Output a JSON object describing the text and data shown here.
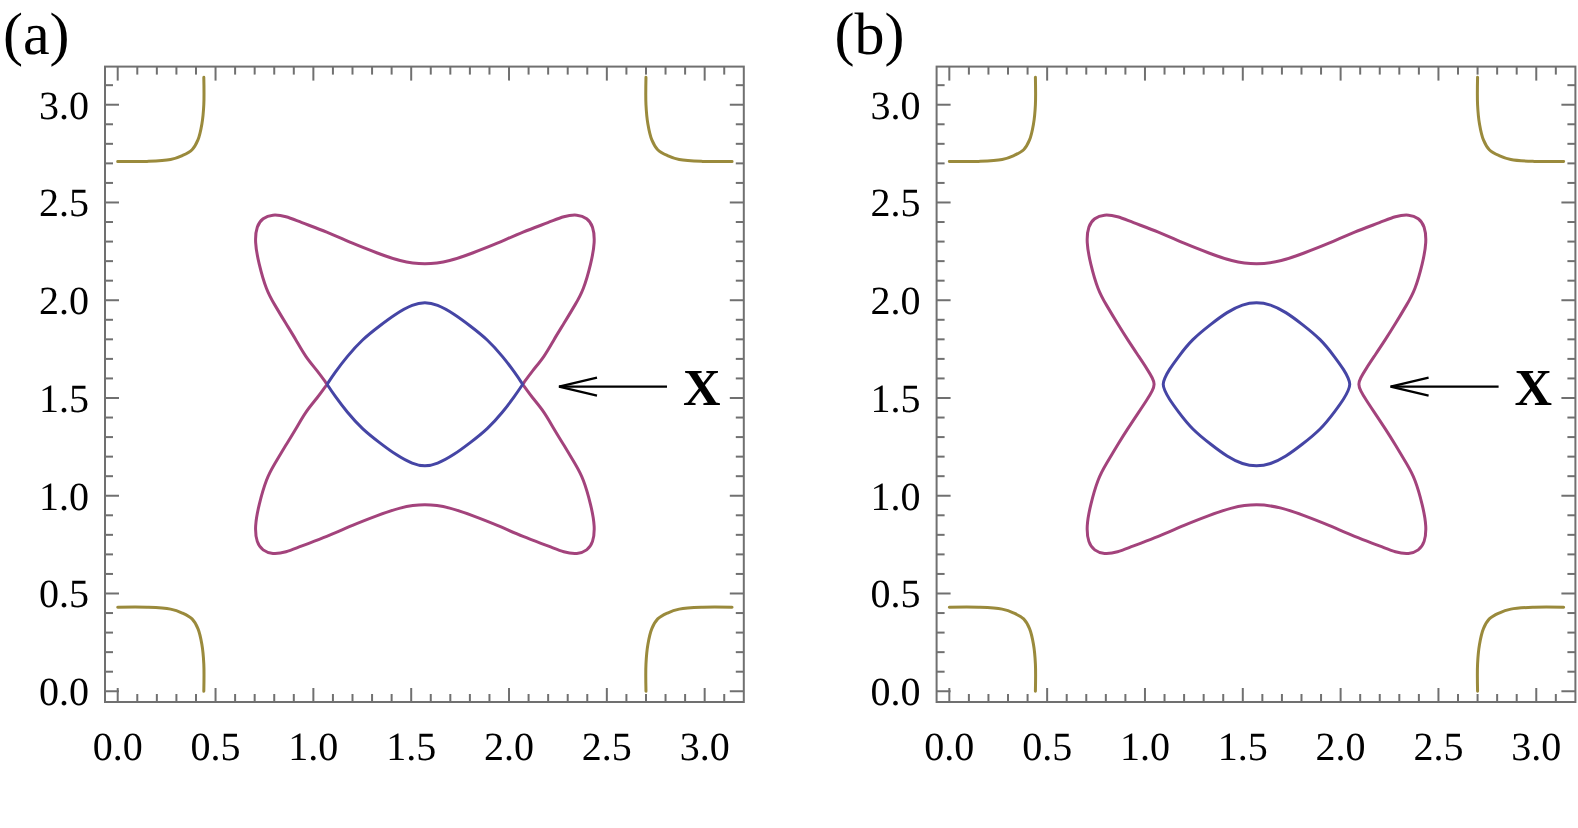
{
  "chart_data": [
    {
      "type": "line",
      "title": "(a)",
      "xlim": [
        -0.065,
        3.2
      ],
      "ylim": [
        -0.055,
        3.195
      ],
      "xticks": [
        {
          "value": 0,
          "label": "0.0"
        },
        {
          "value": 0.1,
          "label": null
        },
        {
          "value": 0.2,
          "label": null
        },
        {
          "value": 0.3,
          "label": null
        },
        {
          "value": 0.4,
          "label": null
        },
        0.5,
        {
          "value": 0.6,
          "label": null
        },
        {
          "value": 0.7,
          "label": null
        },
        {
          "value": 0.8,
          "label": null
        },
        {
          "value": 0.9,
          "label": null
        },
        {
          "value": 1,
          "label": "1.0"
        },
        {
          "value": 1.1,
          "label": null
        },
        {
          "value": 1.2,
          "label": null
        },
        {
          "value": 1.3,
          "label": null
        },
        {
          "value": 1.4,
          "label": null
        },
        1.5,
        {
          "value": 1.6,
          "label": null
        },
        {
          "value": 1.7,
          "label": null
        },
        {
          "value": 1.8,
          "label": null
        },
        {
          "value": 1.9,
          "label": null
        },
        {
          "value": 2,
          "label": "2.0"
        },
        {
          "value": 2.1,
          "label": null
        },
        {
          "value": 2.2,
          "label": null
        },
        {
          "value": 2.3,
          "label": null
        },
        {
          "value": 2.4,
          "label": null
        },
        2.5,
        {
          "value": 2.6,
          "label": null
        },
        {
          "value": 2.7,
          "label": null
        },
        {
          "value": 2.8,
          "label": null
        },
        {
          "value": 2.9,
          "label": null
        },
        {
          "value": 3,
          "label": "3.0"
        },
        {
          "value": 3.1,
          "label": null
        }
      ],
      "yticks": [
        {
          "value": 0,
          "label": "0.0"
        },
        {
          "value": 0.1,
          "label": null
        },
        {
          "value": 0.2,
          "label": null
        },
        {
          "value": 0.3,
          "label": null
        },
        {
          "value": 0.4,
          "label": null
        },
        0.5,
        {
          "value": 0.6,
          "label": null
        },
        {
          "value": 0.7,
          "label": null
        },
        {
          "value": 0.8,
          "label": null
        },
        {
          "value": 0.9,
          "label": null
        },
        {
          "value": 1,
          "label": "1.0"
        },
        {
          "value": 1.1,
          "label": null
        },
        {
          "value": 1.2,
          "label": null
        },
        {
          "value": 1.3,
          "label": null
        },
        {
          "value": 1.4,
          "label": null
        },
        1.5,
        {
          "value": 1.6,
          "label": null
        },
        {
          "value": 1.7,
          "label": null
        },
        {
          "value": 1.8,
          "label": null
        },
        {
          "value": 1.9,
          "label": null
        },
        {
          "value": 2,
          "label": "2.0"
        },
        {
          "value": 2.1,
          "label": null
        },
        {
          "value": 2.2,
          "label": null
        },
        {
          "value": 2.3,
          "label": null
        },
        {
          "value": 2.4,
          "label": null
        },
        2.5,
        {
          "value": 2.6,
          "label": null
        },
        {
          "value": 2.7,
          "label": null
        },
        {
          "value": 2.8,
          "label": null
        },
        {
          "value": 2.9,
          "label": null
        },
        {
          "value": 3,
          "label": "3.0"
        },
        {
          "value": 3.1,
          "label": null
        }
      ],
      "series": [
        {
          "color": "#9a8a3c",
          "x": [
            0,
            0.15,
            0.27,
            0.33,
            0.38,
            0.41,
            0.43,
            0.44,
            0.44
          ],
          "values": [
            2.71,
            2.71,
            2.72,
            2.74,
            2.77,
            2.82,
            2.9,
            3.0,
            3.14
          ]
        },
        {
          "color": "#9a8a3c",
          "x": [
            0,
            0.15,
            0.27,
            0.33,
            0.38,
            0.41,
            0.43,
            0.44,
            0.44
          ],
          "values": [
            0.43,
            0.43,
            0.42,
            0.4,
            0.37,
            0.32,
            0.24,
            0.14,
            0
          ]
        },
        {
          "color": "#9a8a3c",
          "x": [
            2.7,
            2.7,
            2.71,
            2.73,
            2.76,
            2.81,
            2.87,
            2.99,
            3.14
          ],
          "values": [
            3.14,
            3.0,
            2.9,
            2.82,
            2.77,
            2.74,
            2.72,
            2.71,
            2.71
          ]
        },
        {
          "color": "#9a8a3c",
          "x": [
            2.7,
            2.7,
            2.71,
            2.73,
            2.76,
            2.81,
            2.87,
            2.99,
            3.14
          ],
          "values": [
            0,
            0.14,
            0.24,
            0.32,
            0.37,
            0.4,
            0.42,
            0.43,
            0.43
          ]
        }
      ],
      "annotations": [
        "X"
      ]
    },
    {
      "type": "line",
      "title": "(b)",
      "xlim": [
        -0.065,
        3.2
      ],
      "ylim": [
        -0.055,
        3.195
      ],
      "xticks": [
        {
          "value": 0,
          "label": "0.0"
        },
        {
          "value": 0.1,
          "label": null
        },
        {
          "value": 0.2,
          "label": null
        },
        {
          "value": 0.3,
          "label": null
        },
        {
          "value": 0.4,
          "label": null
        },
        0.5,
        {
          "value": 0.6,
          "label": null
        },
        {
          "value": 0.7,
          "label": null
        },
        {
          "value": 0.8,
          "label": null
        },
        {
          "value": 0.9,
          "label": null
        },
        {
          "value": 1,
          "label": "1.0"
        },
        {
          "value": 1.1,
          "label": null
        },
        {
          "value": 1.2,
          "label": null
        },
        {
          "value": 1.3,
          "label": null
        },
        {
          "value": 1.4,
          "label": null
        },
        1.5,
        {
          "value": 1.6,
          "label": null
        },
        {
          "value": 1.7,
          "label": null
        },
        {
          "value": 1.8,
          "label": null
        },
        {
          "value": 1.9,
          "label": null
        },
        {
          "value": 2,
          "label": "2.0"
        },
        {
          "value": 2.1,
          "label": null
        },
        {
          "value": 2.2,
          "label": null
        },
        {
          "value": 2.3,
          "label": null
        },
        {
          "value": 2.4,
          "label": null
        },
        2.5,
        {
          "value": 2.6,
          "label": null
        },
        {
          "value": 2.7,
          "label": null
        },
        {
          "value": 2.8,
          "label": null
        },
        {
          "value": 2.9,
          "label": null
        },
        {
          "value": 3,
          "label": "3.0"
        },
        {
          "value": 3.1,
          "label": null
        }
      ],
      "yticks": [
        {
          "value": 0,
          "label": "0.0"
        },
        {
          "value": 0.1,
          "label": null
        },
        {
          "value": 0.2,
          "label": null
        },
        {
          "value": 0.3,
          "label": null
        },
        {
          "value": 0.4,
          "label": null
        },
        0.5,
        {
          "value": 0.6,
          "label": null
        },
        {
          "value": 0.7,
          "label": null
        },
        {
          "value": 0.8,
          "label": null
        },
        {
          "value": 0.9,
          "label": null
        },
        {
          "value": 1,
          "label": "1.0"
        },
        {
          "value": 1.1,
          "label": null
        },
        {
          "value": 1.2,
          "label": null
        },
        {
          "value": 1.3,
          "label": null
        },
        {
          "value": 1.4,
          "label": null
        },
        1.5,
        {
          "value": 1.6,
          "label": null
        },
        {
          "value": 1.7,
          "label": null
        },
        {
          "value": 1.8,
          "label": null
        },
        {
          "value": 1.9,
          "label": null
        },
        {
          "value": 2,
          "label": "2.0"
        },
        {
          "value": 2.1,
          "label": null
        },
        {
          "value": 2.2,
          "label": null
        },
        {
          "value": 2.3,
          "label": null
        },
        {
          "value": 2.4,
          "label": null
        },
        2.5,
        {
          "value": 2.6,
          "label": null
        },
        {
          "value": 2.7,
          "label": null
        },
        {
          "value": 2.8,
          "label": null
        },
        {
          "value": 2.9,
          "label": null
        },
        {
          "value": 3,
          "label": "3.0"
        },
        {
          "value": 3.1,
          "label": null
        }
      ],
      "series": [
        {
          "color": "#9a8a3c",
          "x": [
            0,
            0.15,
            0.27,
            0.33,
            0.38,
            0.41,
            0.43,
            0.44,
            0.44
          ],
          "values": [
            2.71,
            2.71,
            2.72,
            2.74,
            2.77,
            2.82,
            2.9,
            3.0,
            3.14
          ]
        },
        {
          "color": "#9a8a3c",
          "x": [
            0,
            0.15,
            0.27,
            0.33,
            0.38,
            0.41,
            0.43,
            0.44,
            0.44
          ],
          "values": [
            0.43,
            0.43,
            0.42,
            0.4,
            0.37,
            0.32,
            0.24,
            0.14,
            0
          ]
        },
        {
          "color": "#9a8a3c",
          "x": [
            2.7,
            2.7,
            2.71,
            2.73,
            2.76,
            2.81,
            2.87,
            2.99,
            3.14
          ],
          "values": [
            3.14,
            3.0,
            2.9,
            2.82,
            2.77,
            2.74,
            2.72,
            2.71,
            2.71
          ]
        },
        {
          "color": "#9a8a3c",
          "x": [
            2.7,
            2.7,
            2.71,
            2.73,
            2.76,
            2.81,
            2.87,
            2.99,
            3.14
          ],
          "values": [
            0,
            0.14,
            0.24,
            0.32,
            0.37,
            0.4,
            0.42,
            0.43,
            0.43
          ]
        }
      ],
      "annotations": [
        "X"
      ]
    }
  ]
}
